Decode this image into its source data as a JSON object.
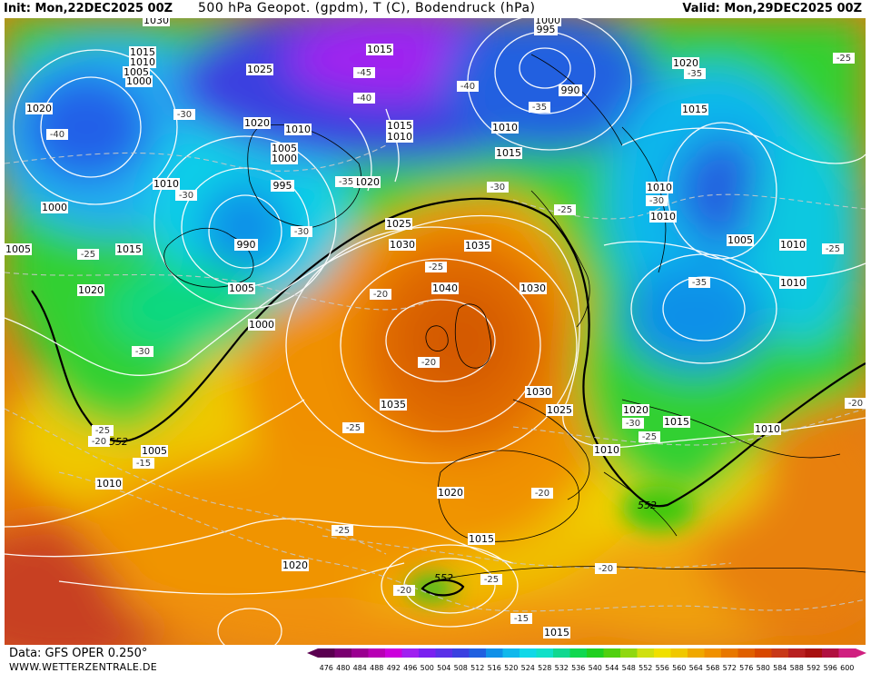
{
  "header": {
    "init": "Init: Mon,22DEC2025 00Z",
    "title": "500 hPa Geopot. (gpdm), T (C), Bodendruck (hPa)",
    "valid": "Valid: Mon,29DEC2025 00Z"
  },
  "footer": {
    "data_source": "Data: GFS OPER 0.250°",
    "website": "WWW.WETTERZENTRALE.DE"
  },
  "colorbar": {
    "values": [
      "476",
      "480",
      "484",
      "488",
      "492",
      "496",
      "500",
      "504",
      "508",
      "512",
      "516",
      "520",
      "524",
      "528",
      "532",
      "536",
      "540",
      "544",
      "548",
      "552",
      "556",
      "560",
      "564",
      "568",
      "572",
      "576",
      "580",
      "584",
      "588",
      "592",
      "596",
      "600"
    ],
    "colors": [
      "#5a0050",
      "#7a0070",
      "#9a0090",
      "#b800b4",
      "#cc00dc",
      "#a020f0",
      "#7a20f0",
      "#5a30e8",
      "#3a40e0",
      "#2060e0",
      "#1090e8",
      "#10b8ec",
      "#10d8e8",
      "#10e0c8",
      "#10d890",
      "#10d850",
      "#20d020",
      "#50d010",
      "#90d810",
      "#d0e010",
      "#f0e000",
      "#f0c800",
      "#f0a800",
      "#f09000",
      "#e87800",
      "#e06000",
      "#d84800",
      "#c83818",
      "#b82020",
      "#a81010",
      "#b01040",
      "#d02080"
    ]
  },
  "pressure_labels": [
    "1030",
    "1015",
    "1010",
    "1005",
    "1000",
    "1025",
    "1020",
    "1010",
    "1020",
    "1010",
    "1005",
    "1000",
    "995",
    "1020",
    "1010",
    "1000",
    "990",
    "1005",
    "1015",
    "1020",
    "1005",
    "1000",
    "1025",
    "1030",
    "1035",
    "1040",
    "1030",
    "1035",
    "1030",
    "1025",
    "1020",
    "1020",
    "1015",
    "1010",
    "1005",
    "1010",
    "1015",
    "1020",
    "1015",
    "1015",
    "1010",
    "1010",
    "1005",
    "1010",
    "1010",
    "1020",
    "1015",
    "1010",
    "1000",
    "995",
    "990",
    "1015",
    "1010",
    "1010",
    "1015"
  ],
  "temperature_labels": [
    "-40",
    "-30",
    "-30",
    "-30",
    "-35",
    "-30",
    "-45",
    "-40",
    "-40",
    "-35",
    "-35",
    "-30",
    "-25",
    "-30",
    "-25",
    "-25",
    "-25",
    "-20",
    "-20",
    "-25",
    "-20",
    "-25",
    "-25",
    "-25",
    "-20",
    "-20",
    "-20",
    "-15",
    "-15",
    "-20",
    "-25",
    "-30",
    "-25",
    "-20",
    "-35",
    "-25"
  ],
  "geopotential_labels": [
    "552",
    "552",
    "552"
  ],
  "legend": {
    "colors": {
      "land_outline": "#000000",
      "isobar": "#ffffff",
      "isotherm": "#c8c8c8",
      "contour_552": "#000000"
    }
  }
}
